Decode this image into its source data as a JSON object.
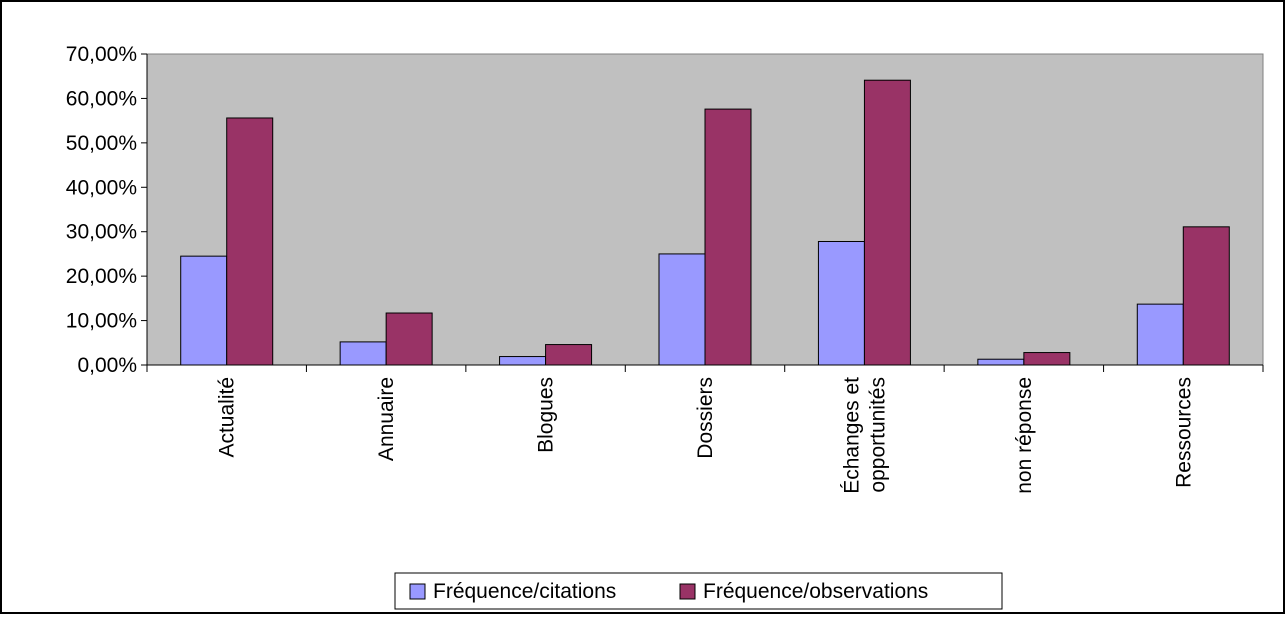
{
  "chart_data": {
    "type": "bar",
    "categories": [
      [
        "Actualité"
      ],
      [
        "Annuaire"
      ],
      [
        "Blogues"
      ],
      [
        "Dossiers"
      ],
      [
        "Échanges et",
        "opportunités"
      ],
      [
        "non réponse"
      ],
      [
        "Ressources"
      ]
    ],
    "series": [
      {
        "name": "Fréquence/citations",
        "values": [
          24.5,
          5.2,
          1.9,
          25.0,
          27.8,
          1.3,
          13.7
        ],
        "color": "#9999ff"
      },
      {
        "name": "Fréquence/observations",
        "values": [
          55.6,
          11.7,
          4.6,
          57.6,
          64.1,
          2.8,
          31.1
        ],
        "color": "#993366"
      }
    ],
    "y_ticks": [
      "0,00%",
      "10,00%",
      "20,00%",
      "30,00%",
      "40,00%",
      "50,00%",
      "60,00%",
      "70,00%"
    ],
    "ylim": [
      0,
      70
    ],
    "grid": false,
    "plot_background": "#c0c0c0",
    "legend": {
      "position": "bottom",
      "entries": [
        "Fréquence/citations",
        "Fréquence/observations"
      ]
    }
  }
}
